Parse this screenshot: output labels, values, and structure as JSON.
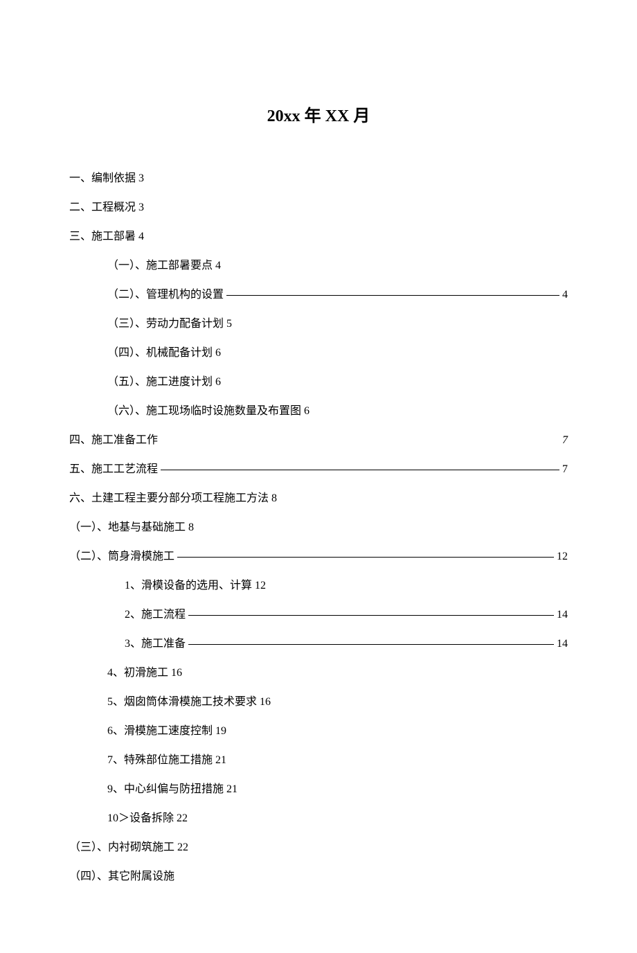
{
  "title": "20xx 年 XX 月",
  "toc": [
    {
      "level": 1,
      "text": "一、编制依据 3",
      "page": "",
      "leader": false
    },
    {
      "level": 1,
      "text": "二、工程概况 3",
      "page": "",
      "leader": false
    },
    {
      "level": 1,
      "text": "三、施工部暑 4",
      "page": "",
      "leader": false
    },
    {
      "level": 2,
      "text": "（一）、施工部暑要点 4",
      "page": "",
      "leader": false
    },
    {
      "level": 2,
      "text": "（二）、管理机构的设置",
      "page": "4",
      "leader": true
    },
    {
      "level": 2,
      "text": "（三）、劳动力配备计划 5",
      "page": "",
      "leader": false
    },
    {
      "level": 2,
      "text": "（四）、机械配备计划 6",
      "page": "",
      "leader": false
    },
    {
      "level": 2,
      "text": "（五）、施工进度计划 6",
      "page": "",
      "leader": false
    },
    {
      "level": 2,
      "text": "（六）、施工现场临时设施数量及布置图 6",
      "page": "",
      "leader": false
    },
    {
      "level": 1,
      "text": "四、施工准备工作 ",
      "page": "7",
      "leader": false,
      "italic": true
    },
    {
      "level": 1,
      "text": "五、施工工艺流程",
      "page": "7",
      "leader": true
    },
    {
      "level": 1,
      "text": "六、土建工程主要分部分项工程施工方法 8",
      "page": "",
      "leader": false
    },
    {
      "level": 1,
      "text": "（一）、地基与基础施工 8",
      "page": "",
      "leader": false
    },
    {
      "level": 1,
      "text": "（二）、筒身滑模施工",
      "page": "12",
      "leader": true
    },
    {
      "level": 4,
      "text": "1、滑模设备的选用、计算 12",
      "page": "",
      "leader": false
    },
    {
      "level": 4,
      "text": "2、施工流程 ",
      "page": "14",
      "leader": true
    },
    {
      "level": 4,
      "text": "3、施工准备 ",
      "page": "14",
      "leader": true
    },
    {
      "level": 3,
      "text": "4、初滑施工 16",
      "page": "",
      "leader": false
    },
    {
      "level": 3,
      "text": "5、烟囱筒体滑模施工技术要求 16",
      "page": "",
      "leader": false
    },
    {
      "level": 3,
      "text": "6、滑模施工速度控制 19",
      "page": "",
      "leader": false
    },
    {
      "level": 3,
      "text": "7、特殊部位施工措施 21",
      "page": "",
      "leader": false
    },
    {
      "level": 3,
      "text": "9、中心纠偏与防扭措施 21",
      "page": "",
      "leader": false
    },
    {
      "level": 3,
      "text": "10＞设备拆除 22",
      "page": "",
      "leader": false
    },
    {
      "level": 1,
      "text": "（三）、内衬砌筑施工 22",
      "page": "",
      "leader": false
    },
    {
      "level": 1,
      "text": "（四）、其它附属设施",
      "page": "",
      "leader": false
    }
  ]
}
